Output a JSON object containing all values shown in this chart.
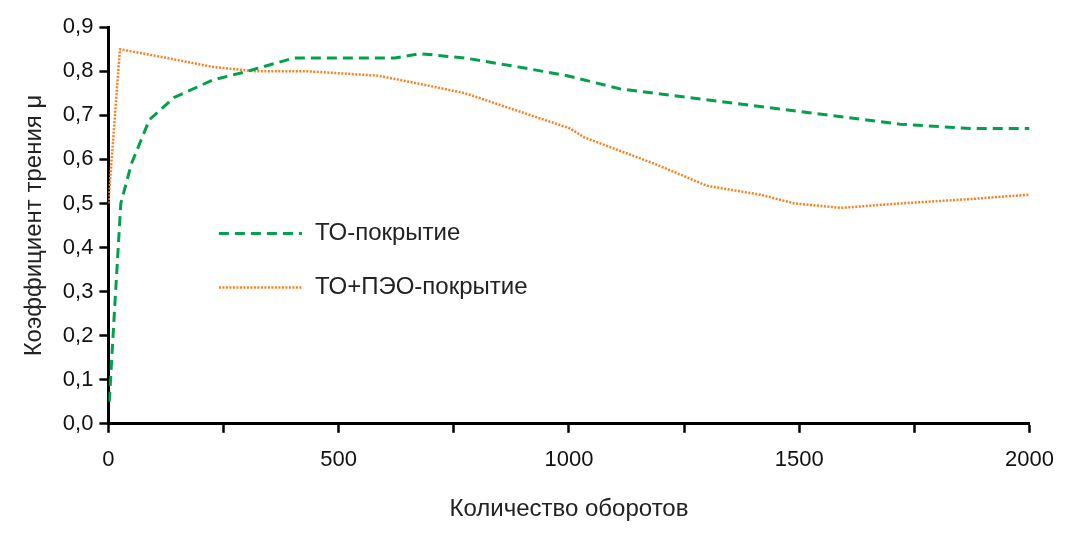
{
  "chart_data": {
    "type": "line",
    "xlabel": "Количество оборотов",
    "ylabel": "Коэффициент трения μ",
    "xlim": [
      0,
      2000
    ],
    "ylim": [
      0,
      0.9
    ],
    "xticks": [
      0,
      {
        "value": 250,
        "label": null
      },
      500,
      {
        "value": 750,
        "label": null
      },
      1000,
      {
        "value": 1250,
        "label": null
      },
      1500,
      {
        "value": 1750,
        "label": null
      },
      2000
    ],
    "yticks": [
      {
        "value": 0,
        "label": "0,0"
      },
      {
        "value": 0.1,
        "label": "0,1"
      },
      {
        "value": 0.2,
        "label": "0,2"
      },
      {
        "value": 0.3,
        "label": "0,3"
      },
      {
        "value": 0.4,
        "label": "0,4"
      },
      {
        "value": 0.5,
        "label": "0,5"
      },
      {
        "value": 0.6,
        "label": "0,6"
      },
      {
        "value": 0.7,
        "label": "0,7"
      },
      {
        "value": 0.8,
        "label": "0,8"
      },
      {
        "value": 0.9,
        "label": "0,9"
      }
    ],
    "grid": false,
    "legend": "center left",
    "marker": "none",
    "series": [
      {
        "name": "ТО-покрытие",
        "color": "#00a14b",
        "line_style": "dashed",
        "x": [
          2,
          14,
          27,
          50,
          89,
          142,
          226,
          302,
          402,
          494,
          585,
          622,
          676,
          775,
          889,
          996,
          1111,
          1262,
          1415,
          1568,
          1719,
          1872,
          2000
        ],
        "values": [
          0.05,
          0.27,
          0.5,
          0.59,
          0.69,
          0.74,
          0.78,
          0.8,
          0.83,
          0.83,
          0.83,
          0.83,
          0.84,
          0.83,
          0.81,
          0.79,
          0.76,
          0.74,
          0.72,
          0.7,
          0.68,
          0.67,
          0.67
        ]
      },
      {
        "name": "ТО+ПЭО-покрытие",
        "color": "#f58220",
        "line_style": "dotted",
        "x": [
          0,
          25,
          128,
          226,
          318,
          432,
          585,
          683,
          775,
          889,
          1003,
          1033,
          1186,
          1300,
          1415,
          1490,
          1591,
          1719,
          1872,
          2000
        ],
        "values": [
          0.5,
          0.85,
          0.83,
          0.81,
          0.8,
          0.8,
          0.79,
          0.77,
          0.75,
          0.71,
          0.67,
          0.65,
          0.59,
          0.54,
          0.52,
          0.5,
          0.49,
          0.5,
          0.51,
          0.52
        ]
      }
    ]
  }
}
